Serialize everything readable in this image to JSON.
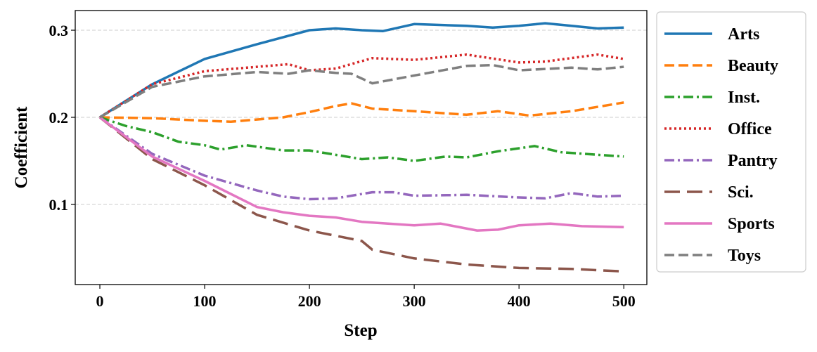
{
  "chart_data": {
    "type": "line",
    "title": "",
    "xlabel": "Step",
    "ylabel": "Coefficient",
    "xlim": [
      -23.5,
      522
    ],
    "ylim": [
      0.008,
      0.3226
    ],
    "xticks": [
      0,
      100,
      200,
      300,
      400,
      500
    ],
    "yticks": [
      0.1,
      0.2,
      0.3
    ],
    "ytick_labels": [
      "0.1",
      "0.2",
      "0.3"
    ],
    "grid": "horizontal dashed",
    "legend_placement": "outside-right",
    "series": [
      {
        "name": "Arts",
        "color": "#1f77b4",
        "dash": "solid",
        "points": [
          [
            0,
            0.2
          ],
          [
            50,
            0.238
          ],
          [
            100,
            0.267
          ],
          [
            150,
            0.284
          ],
          [
            200,
            0.3
          ],
          [
            225,
            0.302
          ],
          [
            250,
            0.3
          ],
          [
            270,
            0.299
          ],
          [
            300,
            0.307
          ],
          [
            350,
            0.305
          ],
          [
            375,
            0.303
          ],
          [
            400,
            0.305
          ],
          [
            425,
            0.308
          ],
          [
            450,
            0.305
          ],
          [
            475,
            0.302
          ],
          [
            500,
            0.303
          ]
        ]
      },
      {
        "name": "Beauty",
        "color": "#ff7f0e",
        "dash": "dashed",
        "points": [
          [
            0,
            0.2
          ],
          [
            50,
            0.199
          ],
          [
            100,
            0.196
          ],
          [
            125,
            0.195
          ],
          [
            175,
            0.2
          ],
          [
            200,
            0.206
          ],
          [
            225,
            0.213
          ],
          [
            240,
            0.216
          ],
          [
            260,
            0.21
          ],
          [
            300,
            0.207
          ],
          [
            350,
            0.203
          ],
          [
            380,
            0.207
          ],
          [
            410,
            0.202
          ],
          [
            450,
            0.207
          ],
          [
            500,
            0.217
          ]
        ]
      },
      {
        "name": "Inst.",
        "color": "#2ca02c",
        "dash": "dashdot",
        "points": [
          [
            0,
            0.2
          ],
          [
            25,
            0.19
          ],
          [
            50,
            0.183
          ],
          [
            75,
            0.172
          ],
          [
            100,
            0.168
          ],
          [
            115,
            0.163
          ],
          [
            140,
            0.168
          ],
          [
            175,
            0.162
          ],
          [
            200,
            0.162
          ],
          [
            250,
            0.152
          ],
          [
            275,
            0.154
          ],
          [
            300,
            0.15
          ],
          [
            330,
            0.155
          ],
          [
            350,
            0.154
          ],
          [
            380,
            0.161
          ],
          [
            415,
            0.167
          ],
          [
            440,
            0.16
          ],
          [
            475,
            0.157
          ],
          [
            500,
            0.155
          ]
        ]
      },
      {
        "name": "Office",
        "color": "#d62728",
        "dash": "dotted",
        "points": [
          [
            0,
            0.2
          ],
          [
            50,
            0.238
          ],
          [
            100,
            0.253
          ],
          [
            150,
            0.258
          ],
          [
            180,
            0.261
          ],
          [
            200,
            0.254
          ],
          [
            225,
            0.256
          ],
          [
            260,
            0.268
          ],
          [
            300,
            0.266
          ],
          [
            350,
            0.272
          ],
          [
            400,
            0.263
          ],
          [
            425,
            0.264
          ],
          [
            475,
            0.272
          ],
          [
            500,
            0.267
          ]
        ]
      },
      {
        "name": "Pantry",
        "color": "#9467bd",
        "dash": "dashdot",
        "points": [
          [
            0,
            0.2
          ],
          [
            50,
            0.158
          ],
          [
            100,
            0.133
          ],
          [
            150,
            0.116
          ],
          [
            175,
            0.109
          ],
          [
            200,
            0.106
          ],
          [
            225,
            0.107
          ],
          [
            260,
            0.114
          ],
          [
            280,
            0.114
          ],
          [
            300,
            0.11
          ],
          [
            350,
            0.111
          ],
          [
            400,
            0.108
          ],
          [
            425,
            0.107
          ],
          [
            450,
            0.113
          ],
          [
            475,
            0.109
          ],
          [
            500,
            0.11
          ]
        ]
      },
      {
        "name": "Sci.",
        "color": "#8c564b",
        "dash": "longdash",
        "points": [
          [
            0,
            0.2
          ],
          [
            50,
            0.152
          ],
          [
            100,
            0.122
          ],
          [
            150,
            0.088
          ],
          [
            200,
            0.07
          ],
          [
            250,
            0.058
          ],
          [
            260,
            0.048
          ],
          [
            300,
            0.038
          ],
          [
            350,
            0.031
          ],
          [
            400,
            0.027
          ],
          [
            450,
            0.026
          ],
          [
            500,
            0.023
          ]
        ]
      },
      {
        "name": "Sports",
        "color": "#e377c2",
        "dash": "solid",
        "points": [
          [
            0,
            0.2
          ],
          [
            50,
            0.155
          ],
          [
            100,
            0.127
          ],
          [
            150,
            0.097
          ],
          [
            175,
            0.091
          ],
          [
            200,
            0.087
          ],
          [
            225,
            0.085
          ],
          [
            250,
            0.08
          ],
          [
            300,
            0.076
          ],
          [
            325,
            0.078
          ],
          [
            360,
            0.07
          ],
          [
            380,
            0.071
          ],
          [
            400,
            0.076
          ],
          [
            430,
            0.078
          ],
          [
            460,
            0.075
          ],
          [
            500,
            0.074
          ]
        ]
      },
      {
        "name": "Toys",
        "color": "#7f7f7f",
        "dash": "dashed",
        "points": [
          [
            0,
            0.2
          ],
          [
            50,
            0.235
          ],
          [
            100,
            0.247
          ],
          [
            150,
            0.252
          ],
          [
            180,
            0.25
          ],
          [
            200,
            0.254
          ],
          [
            225,
            0.251
          ],
          [
            240,
            0.25
          ],
          [
            260,
            0.239
          ],
          [
            300,
            0.248
          ],
          [
            350,
            0.259
          ],
          [
            375,
            0.26
          ],
          [
            400,
            0.254
          ],
          [
            450,
            0.257
          ],
          [
            475,
            0.255
          ],
          [
            500,
            0.258
          ]
        ]
      }
    ]
  }
}
